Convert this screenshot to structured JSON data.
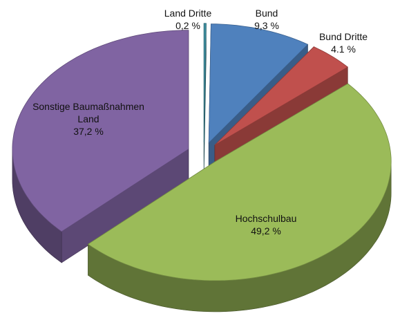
{
  "chart_data": {
    "type": "pie",
    "categories": [
      "Land Dritte",
      "Bund",
      "Bund Dritte",
      "Hochschulbau",
      "Sonstige Baumaßnahmen Land"
    ],
    "values": [
      0.2,
      9.3,
      4.1,
      49.2,
      37.2
    ],
    "value_labels": [
      "0,2 %",
      "9,3 %",
      "4.1 %",
      "49,2 %",
      "37,2 %"
    ],
    "colors": [
      "#3f8fa0",
      "#4f81bd",
      "#c0504d",
      "#9bbb59",
      "#8064a2"
    ]
  }
}
